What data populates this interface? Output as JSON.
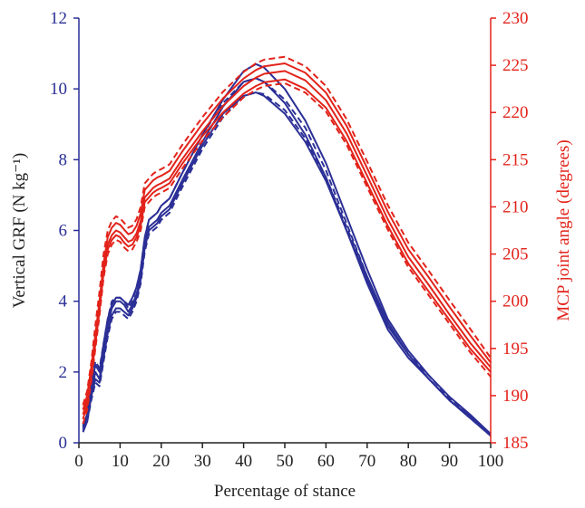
{
  "chart_data": {
    "type": "line",
    "xlabel": "Percentage of stance",
    "ylabel_left": "Vertical GRF (N kg⁻¹)",
    "ylabel_right": "MCP joint angle (degrees)",
    "xlim": [
      0,
      100
    ],
    "ylim_left": [
      0,
      12
    ],
    "ylim_right": [
      185,
      230
    ],
    "x_ticks": [
      "0",
      "10",
      "20",
      "30",
      "40",
      "50",
      "60",
      "70",
      "80",
      "90",
      "100"
    ],
    "y_ticks_left": [
      "0",
      "2",
      "4",
      "6",
      "8",
      "10",
      "12"
    ],
    "y_ticks_right": [
      "185",
      "190",
      "195",
      "200",
      "205",
      "210",
      "215",
      "220",
      "225",
      "230"
    ],
    "grid": false,
    "legend": "none",
    "colors": {
      "grf": "#2b2f96",
      "mcp": "#e2231a",
      "axis_text": "#222222"
    },
    "x": [
      1,
      2,
      3,
      4,
      5,
      6,
      7,
      8,
      9,
      10,
      11,
      12,
      13,
      14,
      15,
      16,
      17,
      18,
      19,
      20,
      22,
      25,
      30,
      35,
      40,
      43,
      45,
      50,
      55,
      60,
      65,
      70,
      75,
      80,
      85,
      90,
      95,
      100
    ],
    "series": [
      {
        "axis": "left",
        "style": "solid",
        "color": "#2b2f96",
        "values": [
          0.4,
          0.7,
          1.4,
          2.0,
          1.8,
          2.6,
          3.3,
          3.8,
          4.0,
          4.0,
          3.9,
          3.7,
          3.9,
          4.2,
          4.7,
          5.6,
          6.1,
          6.2,
          6.3,
          6.5,
          6.7,
          7.4,
          8.5,
          9.5,
          10.2,
          10.3,
          10.2,
          9.6,
          8.7,
          7.5,
          6.0,
          4.5,
          3.2,
          2.4,
          1.8,
          1.2,
          0.75,
          0.25
        ]
      },
      {
        "axis": "left",
        "style": "solid",
        "color": "#2b2f96",
        "values": [
          0.5,
          0.8,
          1.6,
          2.2,
          2.0,
          2.8,
          3.5,
          3.9,
          4.1,
          4.1,
          4.0,
          3.9,
          4.1,
          4.4,
          4.9,
          5.8,
          6.3,
          6.4,
          6.5,
          6.7,
          6.9,
          7.6,
          8.7,
          9.7,
          10.5,
          10.7,
          10.6,
          10.0,
          9.1,
          7.9,
          6.4,
          4.9,
          3.5,
          2.6,
          1.9,
          1.3,
          0.8,
          0.25
        ]
      },
      {
        "axis": "left",
        "style": "solid",
        "color": "#2b2f96",
        "values": [
          0.3,
          0.6,
          1.3,
          1.8,
          1.7,
          2.4,
          3.1,
          3.6,
          3.8,
          3.8,
          3.7,
          3.6,
          3.8,
          4.1,
          4.6,
          5.5,
          6.0,
          6.1,
          6.2,
          6.4,
          6.6,
          7.3,
          8.4,
          9.3,
          9.8,
          9.9,
          9.8,
          9.3,
          8.5,
          7.4,
          6.0,
          4.6,
          3.3,
          2.5,
          1.8,
          1.2,
          0.7,
          0.2
        ]
      },
      {
        "axis": "left",
        "style": "dashed",
        "color": "#2b2f96",
        "values": [
          0.45,
          0.8,
          1.7,
          2.3,
          2.1,
          2.8,
          3.5,
          4.0,
          4.1,
          4.1,
          4.0,
          3.8,
          4.0,
          4.4,
          4.9,
          5.8,
          6.3,
          6.4,
          6.5,
          6.7,
          6.9,
          7.6,
          8.7,
          9.6,
          10.2,
          10.3,
          10.2,
          9.7,
          8.9,
          7.7,
          6.2,
          4.7,
          3.4,
          2.5,
          1.9,
          1.25,
          0.75,
          0.25
        ]
      },
      {
        "axis": "left",
        "style": "dashed",
        "color": "#2b2f96",
        "values": [
          0.35,
          0.6,
          1.2,
          1.7,
          1.6,
          2.3,
          3.0,
          3.5,
          3.7,
          3.7,
          3.6,
          3.5,
          3.7,
          4.0,
          4.5,
          5.4,
          5.9,
          6.0,
          6.1,
          6.3,
          6.5,
          7.2,
          8.3,
          9.2,
          9.8,
          9.9,
          9.85,
          9.4,
          8.6,
          7.5,
          6.1,
          4.7,
          3.4,
          2.5,
          1.8,
          1.2,
          0.7,
          0.2
        ]
      },
      {
        "axis": "right",
        "style": "solid",
        "color": "#e2231a",
        "values": [
          187.5,
          189.0,
          192.0,
          195.5,
          199.0,
          203.0,
          205.5,
          206.5,
          207.0,
          206.8,
          206.2,
          205.8,
          206.0,
          206.8,
          208.0,
          210.5,
          211.0,
          211.5,
          211.8,
          212.0,
          212.5,
          214.5,
          217.5,
          220.0,
          222.0,
          222.8,
          223.2,
          223.5,
          222.5,
          220.5,
          217.0,
          212.5,
          208.0,
          204.0,
          201.0,
          198.0,
          195.0,
          192.5
        ]
      },
      {
        "axis": "right",
        "style": "solid",
        "color": "#e2231a",
        "values": [
          188.0,
          189.5,
          192.5,
          196.0,
          199.5,
          203.5,
          206.0,
          207.0,
          207.5,
          207.3,
          206.8,
          206.3,
          206.5,
          207.2,
          208.5,
          211.0,
          211.5,
          212.0,
          212.3,
          212.5,
          213.0,
          215.0,
          218.0,
          220.7,
          222.8,
          223.7,
          224.1,
          224.4,
          223.4,
          221.3,
          217.8,
          213.3,
          208.7,
          204.7,
          201.7,
          198.6,
          195.6,
          193.0
        ]
      },
      {
        "axis": "right",
        "style": "solid",
        "color": "#e2231a",
        "values": [
          188.5,
          190.0,
          193.0,
          196.5,
          200.0,
          204.0,
          206.8,
          207.8,
          208.3,
          208.1,
          207.6,
          207.1,
          207.3,
          208.0,
          209.3,
          211.8,
          212.3,
          212.8,
          213.1,
          213.3,
          213.8,
          215.8,
          218.8,
          221.5,
          223.6,
          224.5,
          224.9,
          225.2,
          224.2,
          222.1,
          218.6,
          214.1,
          209.5,
          205.5,
          202.5,
          199.4,
          196.4,
          193.5
        ]
      },
      {
        "axis": "right",
        "style": "dashed",
        "color": "#e2231a",
        "values": [
          187.0,
          188.5,
          191.5,
          195.0,
          198.5,
          202.5,
          205.0,
          206.0,
          206.5,
          206.3,
          205.7,
          205.3,
          205.5,
          206.3,
          207.5,
          210.0,
          210.5,
          211.0,
          211.3,
          211.5,
          212.0,
          214.0,
          217.0,
          219.5,
          221.6,
          222.4,
          222.8,
          223.1,
          222.1,
          220.1,
          216.6,
          212.1,
          207.6,
          203.6,
          200.6,
          197.6,
          194.6,
          192.0
        ]
      },
      {
        "axis": "right",
        "style": "dashed",
        "color": "#e2231a",
        "values": [
          189.0,
          190.5,
          193.5,
          197.5,
          201.0,
          205.0,
          207.5,
          208.5,
          209.0,
          208.8,
          208.3,
          207.8,
          208.0,
          208.7,
          210.0,
          212.5,
          213.0,
          213.5,
          213.8,
          214.0,
          214.5,
          216.5,
          219.5,
          222.2,
          224.3,
          225.2,
          225.6,
          225.9,
          224.9,
          222.8,
          219.3,
          214.8,
          210.2,
          206.2,
          203.2,
          200.1,
          197.1,
          194.0
        ]
      }
    ]
  }
}
